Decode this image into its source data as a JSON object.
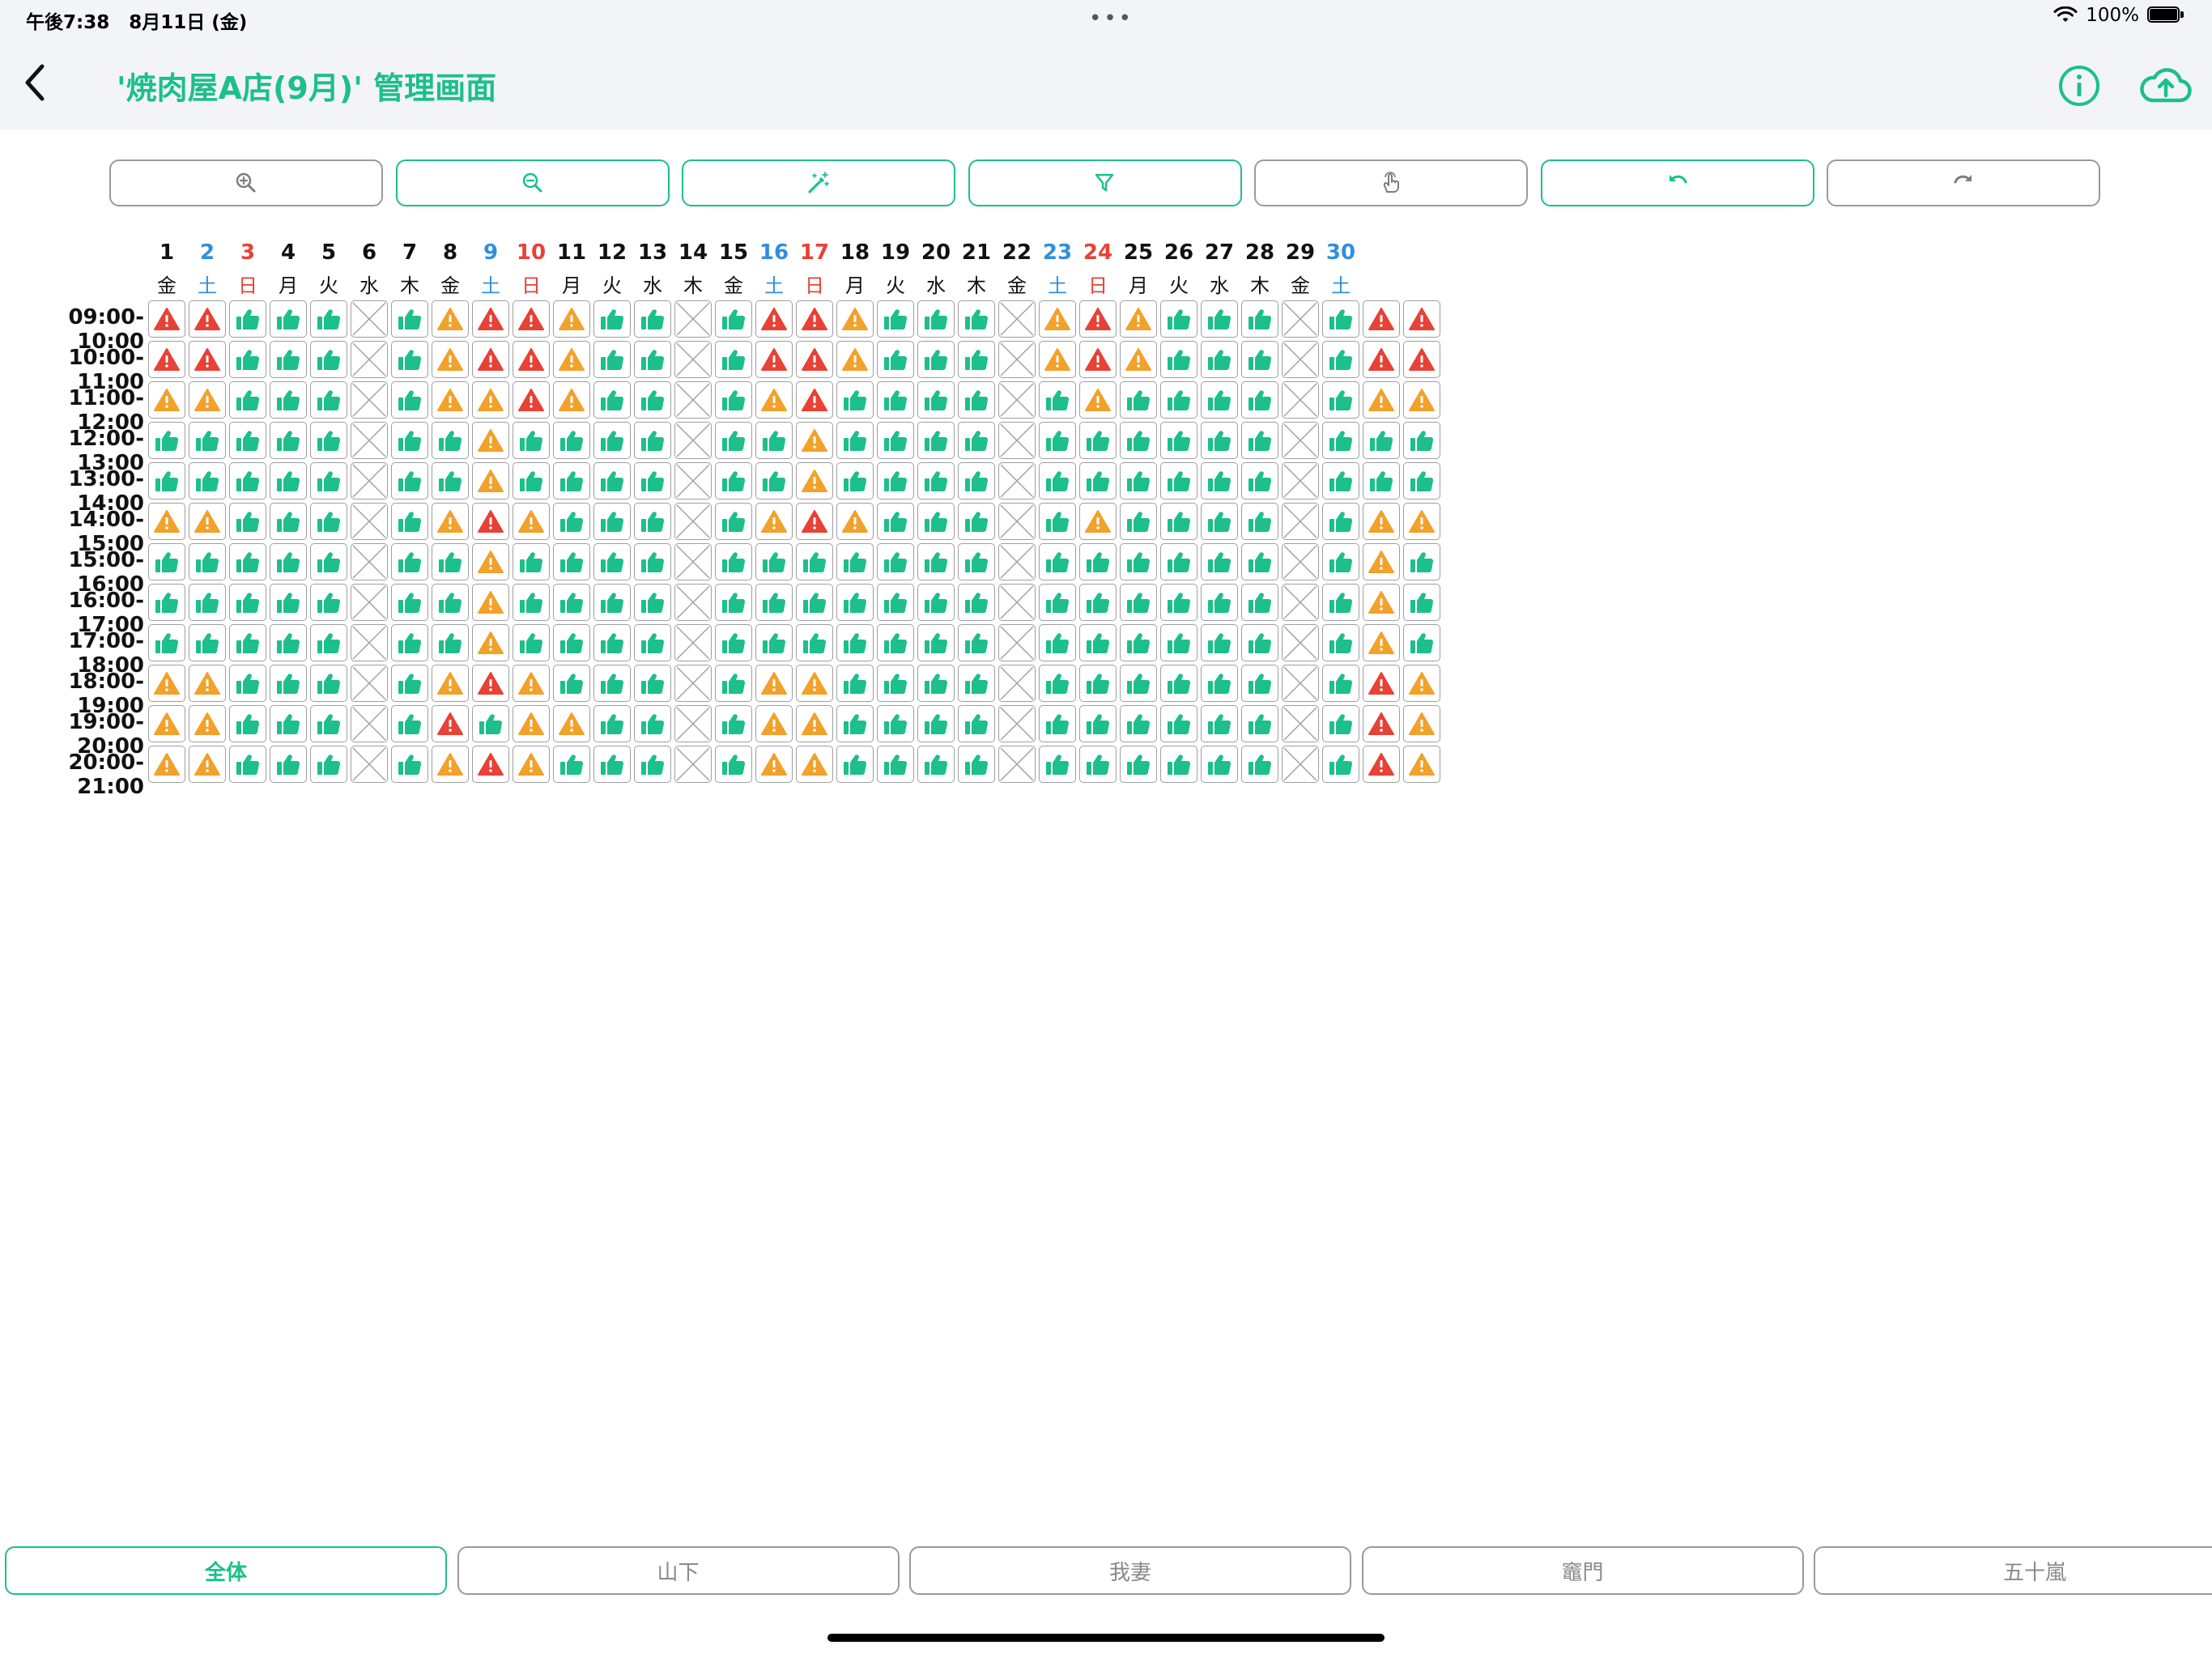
{
  "status_bar": {
    "time": "午後7:38   8月11日 (金)",
    "battery": "100%"
  },
  "header": {
    "title": "'焼肉屋A店(9月)' 管理画面"
  },
  "toolbar": {
    "buttons": [
      {
        "name": "zoom-in-button",
        "icon": "zoom-in-icon",
        "accent": false
      },
      {
        "name": "zoom-out-button",
        "icon": "zoom-out-icon",
        "accent": true
      },
      {
        "name": "auto-assign-button",
        "icon": "magic-wand-icon",
        "accent": true
      },
      {
        "name": "filter-button",
        "icon": "filter-icon",
        "accent": true
      },
      {
        "name": "touch-mode-button",
        "icon": "hand-pointer-icon",
        "accent": false
      },
      {
        "name": "undo-button",
        "icon": "undo-icon",
        "accent": true
      },
      {
        "name": "redo-button",
        "icon": "redo-icon",
        "accent": false
      }
    ]
  },
  "colors": {
    "accent": "#1dbf8a",
    "ok": "#1dbf8a",
    "warn": "#f2a12b",
    "danger": "#e84135",
    "saturday": "#2f8fdf",
    "sunday": "#e84135",
    "closed": "#9f9f9f"
  },
  "schedule": {
    "legend": {
      "o": "ok-thumbs-up",
      "w": "warning-orange",
      "d": "warning-red",
      "x": "closed"
    },
    "dates": [
      "1",
      "2",
      "3",
      "4",
      "5",
      "6",
      "7",
      "8",
      "9",
      "10",
      "11",
      "12",
      "13",
      "14",
      "15",
      "16",
      "17",
      "18",
      "19",
      "20",
      "21",
      "22",
      "23",
      "24",
      "25",
      "26",
      "27",
      "28",
      "29",
      "30"
    ],
    "weekdays": [
      "金",
      "土",
      "日",
      "月",
      "火",
      "水",
      "木",
      "金",
      "土",
      "日",
      "月",
      "火",
      "水",
      "木",
      "金",
      "土",
      "日",
      "月",
      "火",
      "水",
      "木",
      "金",
      "土",
      "日",
      "月",
      "火",
      "水",
      "木",
      "金",
      "土"
    ],
    "rows": [
      {
        "time": "09:00-10:00",
        "cells": "ddooox owddw oox oddwo oo xwdwoo oxodd"
      },
      {
        "time": "10:00-11:00",
        "cells": "ddooox owddw oox oddwo oo xwdwoo oxodd"
      },
      {
        "time": "11:00-12:00",
        "cells": "wwooox owwdw oox owdoo oo xowooo oxoww"
      },
      {
        "time": "12:00-13:00",
        "cells": "ooooox oowoo oox oowoo oo xooooo oxooo"
      },
      {
        "time": "13:00-14:00",
        "cells": "ooooox oowoo oox oowoo oo xooooo oxooo"
      },
      {
        "time": "14:00-15:00",
        "cells": "wwooox owdwo oox owdwo oo xowooo oxoww"
      },
      {
        "time": "15:00-16:00",
        "cells": "ooooox oowoo oox ooooo oo xooooo oxowo"
      },
      {
        "time": "16:00-17:00",
        "cells": "ooooox oowoo oox ooooo oo xooooo oxowo"
      },
      {
        "time": "17:00-18:00",
        "cells": "ooooox oowoo oox ooooo oo xooooo oxowo"
      },
      {
        "time": "18:00-19:00",
        "cells": "wwooox owdwo oox owwoo oo xooooo oxodw"
      },
      {
        "time": "19:00-20:00",
        "cells": "wwooox odoww oox owwoo oo xooooo oxodw"
      },
      {
        "time": "20:00-21:00",
        "cells": "wwooox owdwo oox owwoo oo xooooo oxodw"
      }
    ]
  },
  "bottom_tabs": [
    {
      "label": "全体",
      "active": true
    },
    {
      "label": "山下",
      "active": false
    },
    {
      "label": "我妻",
      "active": false
    },
    {
      "label": "竈門",
      "active": false
    },
    {
      "label": "五十嵐",
      "active": false
    }
  ]
}
